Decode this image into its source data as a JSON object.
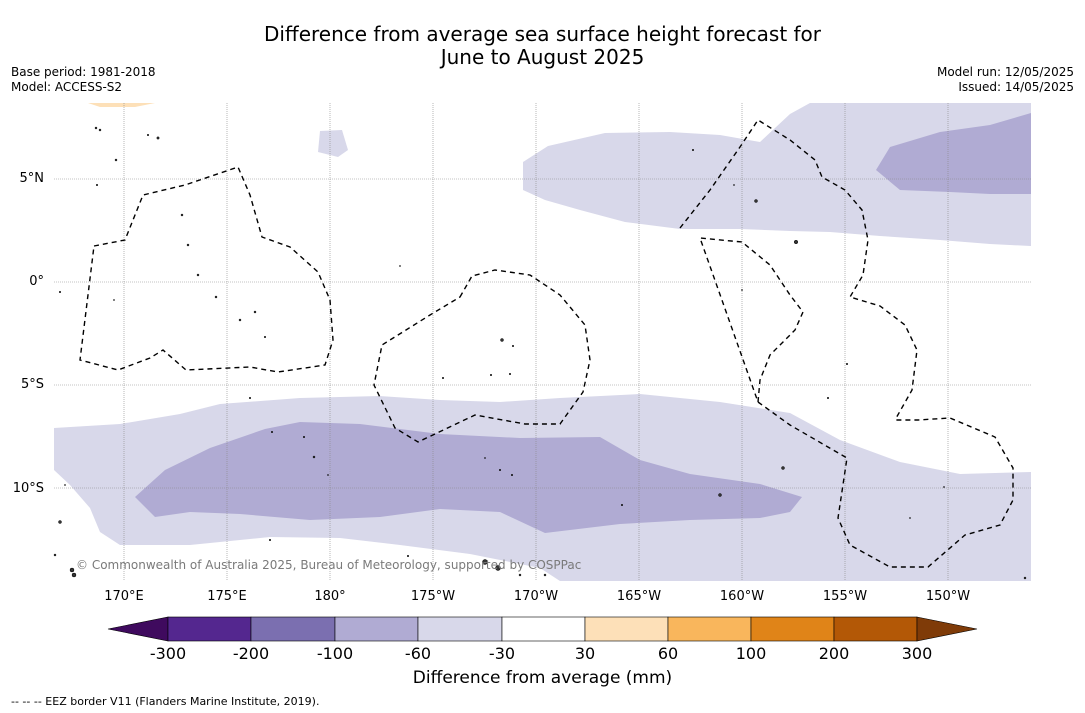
{
  "header": {
    "title_line1": "Difference from average sea surface height forecast for",
    "title_line2": "June to August 2025",
    "base_period": "Base period: 1981-2018",
    "model": "Model: ACCESS-S2",
    "model_run": "Model run: 12/05/2025",
    "issued": "Issued: 14/05/2025"
  },
  "map": {
    "lon_labels": [
      "170°E",
      "175°E",
      "180°",
      "175°W",
      "170°W",
      "165°W",
      "160°W",
      "155°W",
      "150°W"
    ],
    "lat_labels": [
      "5°N",
      "0°",
      "5°S",
      "10°S"
    ],
    "copyright": "© Commonwealth of Australia 2025, Bureau of Meteorology, supported by COSPPac",
    "colors": {
      "minus60_minus30": "#d8d8ea",
      "minus100_minus60": "#b0abd3",
      "plus30_plus60": "#fde0b8",
      "grid": "#888888",
      "eez": "#000000"
    }
  },
  "colorbar": {
    "labels": [
      "-300",
      "-200",
      "-100",
      "-60",
      "-30",
      "30",
      "60",
      "100",
      "200",
      "300"
    ],
    "colors": [
      "#3f0a5e",
      "#54278f",
      "#7b6fb0",
      "#b0abd3",
      "#d8d8ea",
      "#ffffff",
      "#fde0b8",
      "#f9b65c",
      "#e08418",
      "#b35806",
      "#7f3b08"
    ],
    "title": "Difference from average (mm)"
  },
  "footer": {
    "legend": "--  --  -- EEZ border V11 (Flanders Marine Institute, 2019)."
  }
}
